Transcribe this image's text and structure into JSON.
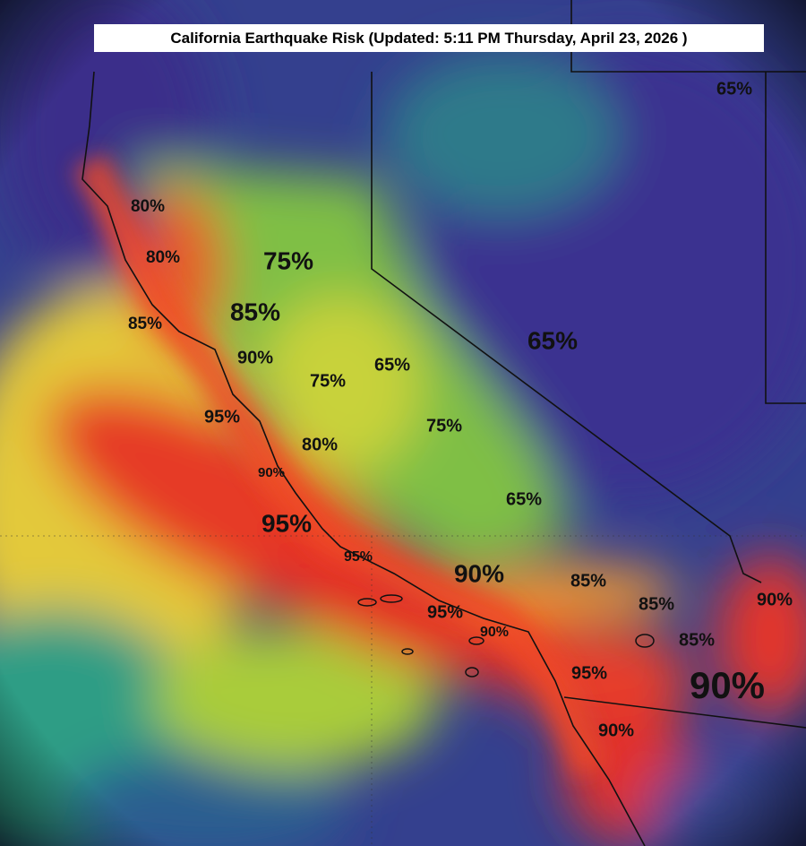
{
  "header": {
    "title": "California Earthquake Risk (Updated: 5:11 PM Thursday, April 23, 2026 )"
  },
  "labels": [
    {
      "text": "65%"
    },
    {
      "text": "80%"
    },
    {
      "text": "80%"
    },
    {
      "text": "75%"
    },
    {
      "text": "85%"
    },
    {
      "text": "85%"
    },
    {
      "text": "90%"
    },
    {
      "text": "65%"
    },
    {
      "text": "65%"
    },
    {
      "text": "75%"
    },
    {
      "text": "95%"
    },
    {
      "text": "75%"
    },
    {
      "text": "80%"
    },
    {
      "text": "90%"
    },
    {
      "text": "65%"
    },
    {
      "text": "95%"
    },
    {
      "text": "95%"
    },
    {
      "text": "90%"
    },
    {
      "text": "85%"
    },
    {
      "text": "90%"
    },
    {
      "text": "85%"
    },
    {
      "text": "95%"
    },
    {
      "text": "90%"
    },
    {
      "text": "85%"
    },
    {
      "text": "95%"
    },
    {
      "text": "90%"
    },
    {
      "text": "90%"
    }
  ]
}
